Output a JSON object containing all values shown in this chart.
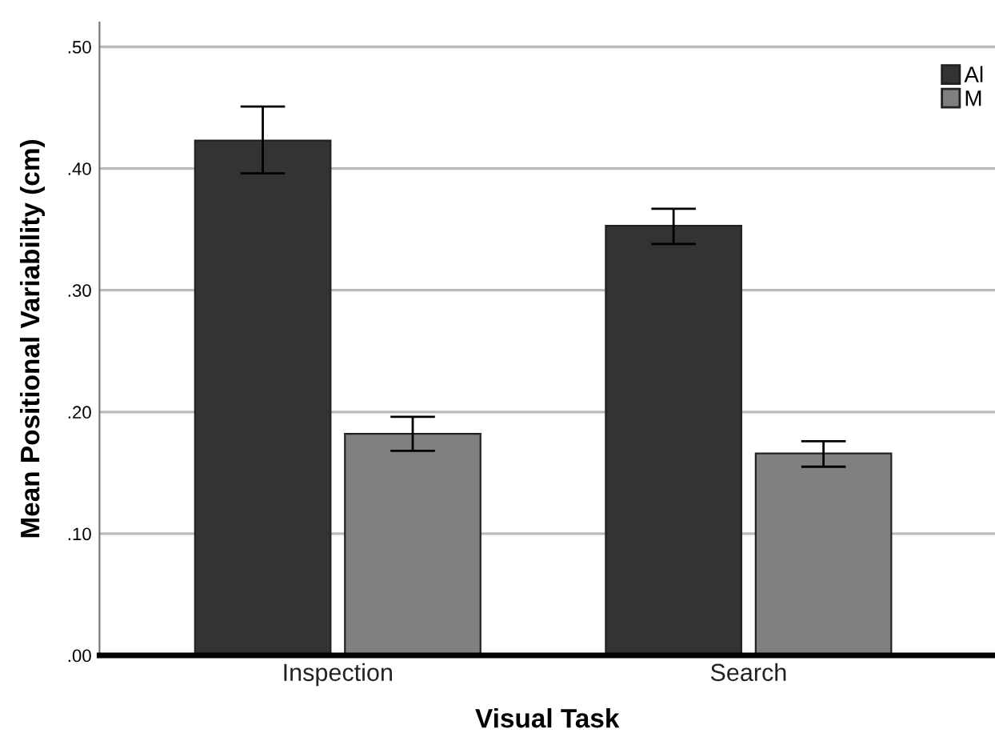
{
  "chart_data": {
    "type": "bar",
    "xlabel": "Visual Task",
    "ylabel": "Mean Positional Variability (cm)",
    "categories": [
      "Inspection",
      "Search"
    ],
    "series": [
      {
        "name": "Al",
        "color": "#333333",
        "values": [
          0.423,
          0.353
        ],
        "errors": [
          [
            0.396,
            0.451
          ],
          [
            0.338,
            0.367
          ]
        ]
      },
      {
        "name": "M",
        "color": "#808080",
        "values": [
          0.182,
          0.166
        ],
        "errors": [
          [
            0.168,
            0.196
          ],
          [
            0.155,
            0.176
          ]
        ]
      }
    ],
    "ylim": [
      0,
      0.52
    ],
    "yticks": [
      {
        "value": 0,
        "label": ".00"
      },
      {
        "value": 0.1,
        "label": ".10"
      },
      {
        "value": 0.2,
        "label": ".20"
      },
      {
        "value": 0.3,
        "label": ".30"
      },
      {
        "value": 0.4,
        "label": ".40"
      },
      {
        "value": 0.5,
        "label": ".50"
      }
    ],
    "grid": "y",
    "legend": "top right"
  }
}
